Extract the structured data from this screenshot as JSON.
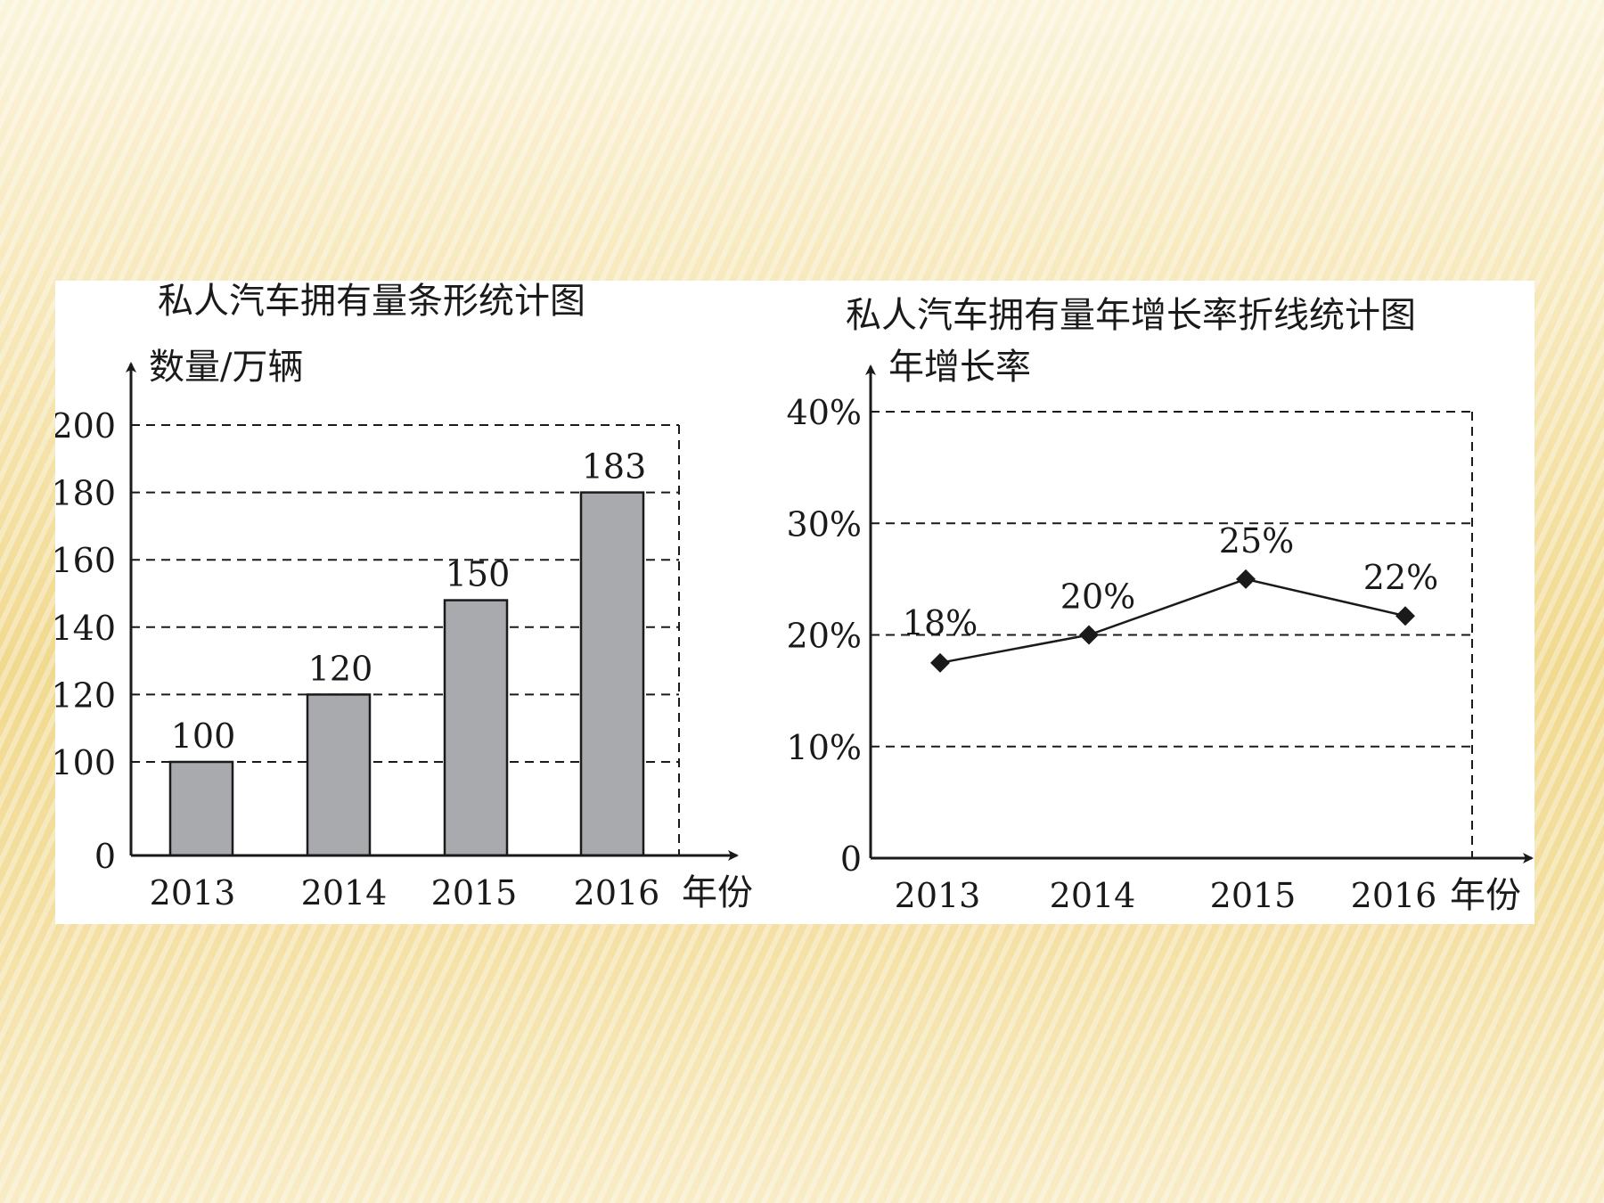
{
  "chart_data": [
    {
      "type": "bar",
      "title": "私人汽车拥有量条形统计图",
      "ylabel": "数量/万辆",
      "xlabel": "年份",
      "categories": [
        "2013",
        "2014",
        "2015",
        "2016"
      ],
      "values": [
        100,
        120,
        150,
        183
      ],
      "bar_heights_drawn": [
        100,
        120,
        148,
        180
      ],
      "y_tick_labels": [
        "0",
        "100",
        "120",
        "140",
        "160",
        "180",
        "200"
      ],
      "y_ticks": [
        0,
        100,
        120,
        140,
        160,
        180,
        200
      ],
      "ylim": [
        0,
        200
      ],
      "axis_break": "0 to 100 compressed",
      "grid": "dashed",
      "bar_color": "#a9aaae"
    },
    {
      "type": "line",
      "title": "私人汽车拥有量年增长率折线统计图",
      "ylabel": "年增长率",
      "xlabel": "年份",
      "categories": [
        "2013",
        "2014",
        "2015",
        "2016"
      ],
      "values": [
        18,
        20,
        25,
        22
      ],
      "value_labels": [
        "18%",
        "20%",
        "25%",
        "22%"
      ],
      "values_drawn": [
        17.5,
        20,
        25,
        21.7
      ],
      "y_tick_labels": [
        "0",
        "10%",
        "20%",
        "30%",
        "40%"
      ],
      "y_ticks": [
        0,
        10,
        20,
        30,
        40
      ],
      "ylim": [
        0,
        40
      ],
      "grid": "dashed",
      "marker": "diamond"
    }
  ]
}
